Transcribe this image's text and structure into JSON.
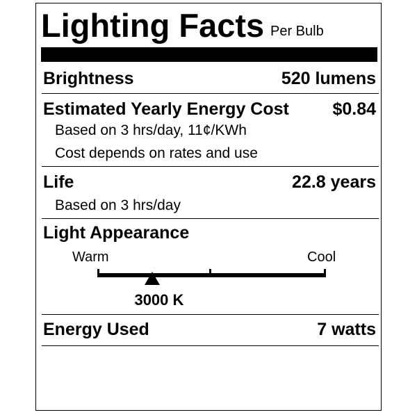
{
  "header": {
    "title": "Lighting Facts",
    "subtitle": "Per Bulb"
  },
  "brightness": {
    "label": "Brightness",
    "value": "520 lumens"
  },
  "energy_cost": {
    "label": "Estimated Yearly Energy Cost",
    "value": "$0.84",
    "notes": [
      "Based on 3 hrs/day, 11¢/KWh",
      "Cost depends on rates and use"
    ]
  },
  "life": {
    "label": "Life",
    "value": "22.8 years",
    "note": "Based on 3 hrs/day"
  },
  "light_appearance": {
    "label": "Light Appearance",
    "scale_left": "Warm",
    "scale_right": "Cool",
    "value": "3000 K",
    "marker_position_fraction": 0.24
  },
  "energy_used": {
    "label": "Energy Used",
    "value": "7 watts"
  }
}
